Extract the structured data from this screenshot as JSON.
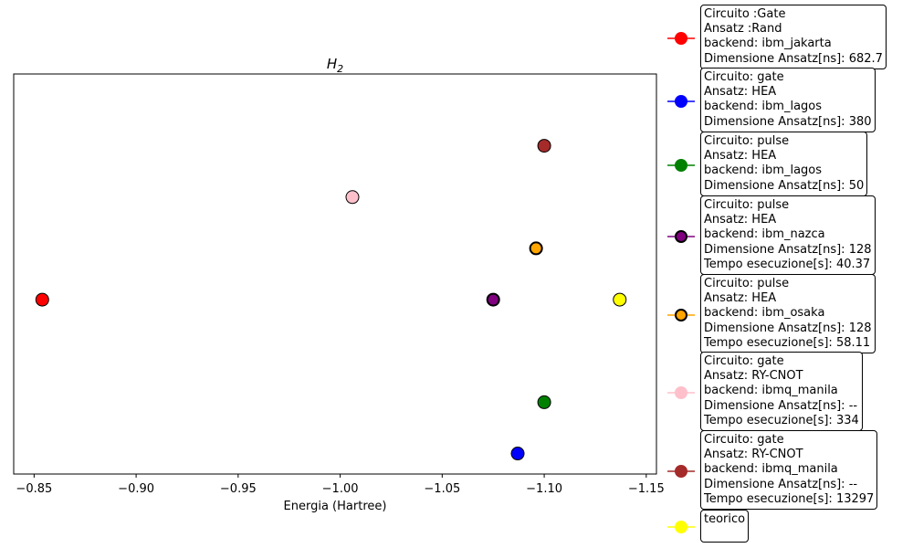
{
  "chart_data": {
    "type": "scatter",
    "title": "H_2",
    "xlabel": "Energia (Hartree)",
    "ylabel": "",
    "xlim": [
      -0.84,
      -1.155
    ],
    "ylim": [
      0.6,
      8.4
    ],
    "x_axis_inverted": true,
    "yticks_visible": false,
    "grid": false,
    "legend_placement": "right, outside plot",
    "xticks": [
      -0.85,
      -0.9,
      -0.95,
      -1.0,
      -1.05,
      -1.1,
      -1.15
    ],
    "xtick_labels": [
      "−0.85",
      "−0.90",
      "−0.95",
      "−1.00",
      "−1.05",
      "−1.10",
      "−1.15"
    ],
    "series": [
      {
        "color": "#ff0000",
        "edge": "#000000",
        "edge_width": 1,
        "x": -0.854,
        "y": 4,
        "legend_lines": [
          "Circuito :Gate",
          "Ansatz :Rand",
          "backend: ibm_jakarta",
          "Dimensione Ansatz[ns]: 682.7"
        ]
      },
      {
        "color": "#0000ff",
        "edge": "#000000",
        "edge_width": 1,
        "x": -1.087,
        "y": 1,
        "legend_lines": [
          "Circuito: gate",
          "Ansatz: HEA",
          "backend: ibm_lagos",
          "Dimensione Ansatz[ns]: 380"
        ]
      },
      {
        "color": "#008000",
        "edge": "#000000",
        "edge_width": 1,
        "x": -1.1,
        "y": 2,
        "legend_lines": [
          "Circuito: pulse",
          "Ansatz: HEA",
          "backend: ibm_lagos",
          "Dimensione Ansatz[ns]: 50"
        ]
      },
      {
        "color": "#800080",
        "edge": "#000000",
        "edge_width": 2,
        "x": -1.075,
        "y": 4,
        "legend_lines": [
          "Circuito: pulse",
          "Ansatz: HEA",
          "backend: ibm_nazca",
          "Dimensione Ansatz[ns]: 128",
          "Tempo esecuzione[s]: 40.37"
        ]
      },
      {
        "color": "#ffa500",
        "edge": "#000000",
        "edge_width": 2,
        "x": -1.096,
        "y": 5,
        "legend_lines": [
          "Circuito: pulse",
          "Ansatz: HEA",
          "backend: ibm_osaka",
          "Dimensione Ansatz[ns]: 128",
          "Tempo esecuzione[s]: 58.11"
        ]
      },
      {
        "color": "#ffc0cb",
        "edge": "#000000",
        "edge_width": 1,
        "x": -1.006,
        "y": 6,
        "legend_lines": [
          "Circuito: gate",
          "Ansatz: RY-CNOT",
          "backend: ibmq_manila",
          "Dimensione Ansatz[ns]: --",
          "Tempo esecuzione[s]: 334"
        ]
      },
      {
        "color": "#a52a2a",
        "edge": "#000000",
        "edge_width": 1,
        "x": -1.1,
        "y": 7,
        "legend_lines": [
          "Circuito: gate",
          "Ansatz: RY-CNOT",
          "backend: ibmq_manila",
          "Dimensione Ansatz[ns]: --",
          "Tempo esecuzione[s]: 13297"
        ]
      },
      {
        "color": "#ffff00",
        "edge": "#000000",
        "edge_width": 1,
        "x": -1.137,
        "y": 4,
        "legend_lines": [
          "teorico"
        ]
      }
    ]
  }
}
